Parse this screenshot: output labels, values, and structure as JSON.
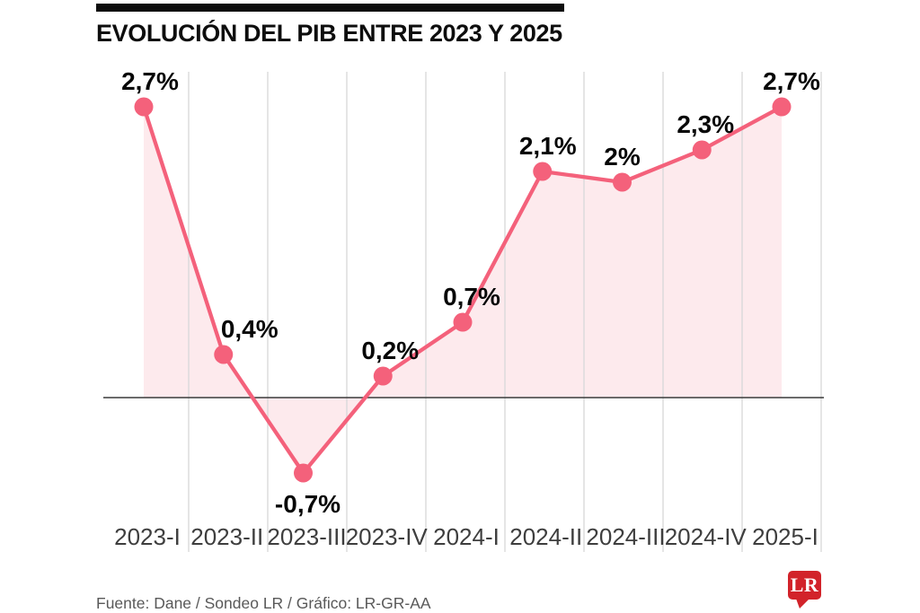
{
  "header": {
    "title": "EVOLUCIÓN DEL PIB ENTRE 2023 Y 2025"
  },
  "footer": {
    "source_line": "Fuente: Dane / Sondeo LR / Gráfico: LR-GR-AA"
  },
  "logo": {
    "text": "LR"
  },
  "colors": {
    "line": "#f4617b",
    "marker": "#f4617b",
    "area_fill": "#fdeaed",
    "gridline": "#d9d9d9",
    "baseline": "#3a3a3a",
    "point_label": "#070707",
    "axis_label": "#3e3e3e",
    "footer_text": "#595959",
    "title_bar": "#0d0d0d",
    "logo_red": "#d2232a"
  },
  "chart_data": {
    "type": "line",
    "title": "EVOLUCIÓN DEL PIB ENTRE 2023 Y 2025",
    "categories": [
      "2023-I",
      "2023-II",
      "2023-III",
      "2023-IV",
      "2024-I",
      "2024-II",
      "2024-III",
      "2024-IV",
      "2025-I"
    ],
    "values": [
      2.7,
      0.4,
      -0.7,
      0.2,
      0.7,
      2.1,
      2.0,
      2.3,
      2.7
    ],
    "point_labels": [
      "2,7%",
      "0,4%",
      "-0,7%",
      "0,2%",
      "0,7%",
      "2,1%",
      "2%",
      "2,3%",
      "2,7%"
    ],
    "unit": "%",
    "xlabel": "",
    "ylabel": "",
    "ylim": [
      -1.0,
      3.0
    ],
    "baseline_value": 0,
    "grid": "vertical-only",
    "area_fill": true,
    "legend": "none"
  }
}
